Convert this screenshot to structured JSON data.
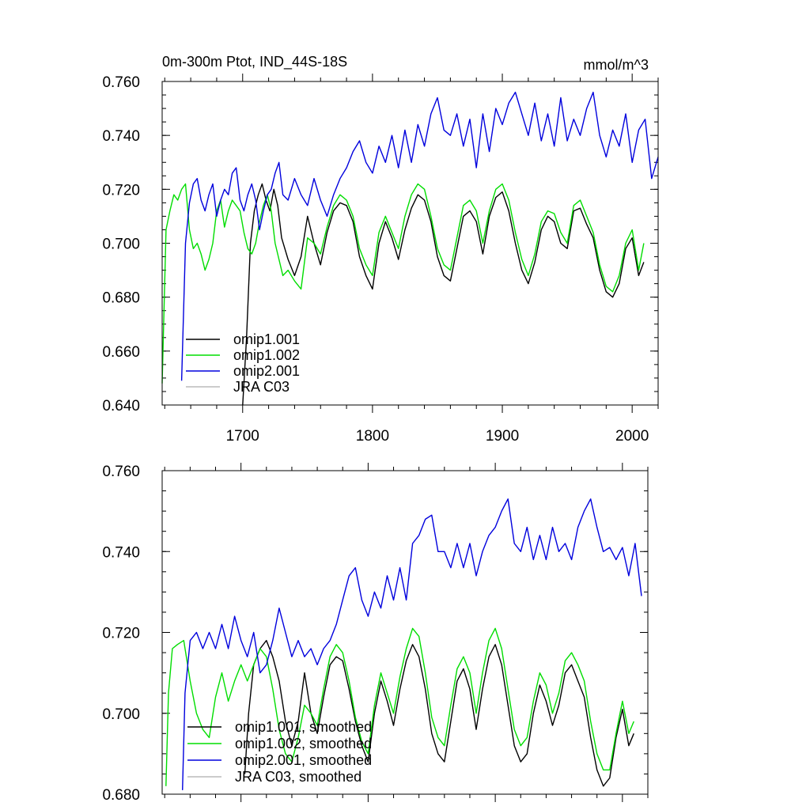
{
  "chart_data": [
    {
      "type": "line",
      "title": "0m-300m Ptot, IND_44S-18S",
      "units": "mmol/m^3",
      "xlim": [
        1638,
        2020
      ],
      "ylim": [
        0.64,
        0.76
      ],
      "yticks": [
        "0.760",
        "0.740",
        "0.720",
        "0.700",
        "0.680",
        "0.660",
        "0.640"
      ],
      "xticks": [
        "1700",
        "1800",
        "1900",
        "2000"
      ],
      "legend_position": "bottom-left",
      "legend": [
        {
          "label": "omip1.001",
          "color": "#000000"
        },
        {
          "label": "omip1.002",
          "color": "#00dd00"
        },
        {
          "label": "omip2.001",
          "color": "#0000dd"
        },
        {
          "label": "JRA C03",
          "color": "#bbbbbb"
        }
      ],
      "series": [
        {
          "name": "omip1.001",
          "color": "#000000",
          "x": [
            1700,
            1703,
            1706,
            1709,
            1712,
            1715,
            1718,
            1721,
            1724,
            1727,
            1730,
            1735,
            1740,
            1745,
            1750,
            1755,
            1760,
            1765,
            1770,
            1775,
            1780,
            1785,
            1790,
            1795,
            1800,
            1805,
            1810,
            1815,
            1820,
            1825,
            1830,
            1835,
            1840,
            1845,
            1850,
            1855,
            1860,
            1865,
            1870,
            1875,
            1880,
            1885,
            1890,
            1895,
            1900,
            1905,
            1910,
            1915,
            1920,
            1925,
            1930,
            1935,
            1940,
            1945,
            1950,
            1955,
            1960,
            1965,
            1970,
            1975,
            1980,
            1985,
            1990,
            1995,
            2000,
            2005,
            2009
          ],
          "y": [
            0.64,
            0.665,
            0.7,
            0.712,
            0.718,
            0.722,
            0.716,
            0.712,
            0.72,
            0.714,
            0.702,
            0.694,
            0.688,
            0.695,
            0.71,
            0.7,
            0.692,
            0.704,
            0.712,
            0.715,
            0.714,
            0.708,
            0.695,
            0.688,
            0.683,
            0.7,
            0.708,
            0.702,
            0.694,
            0.705,
            0.713,
            0.718,
            0.716,
            0.708,
            0.695,
            0.688,
            0.686,
            0.698,
            0.71,
            0.712,
            0.708,
            0.696,
            0.71,
            0.717,
            0.719,
            0.712,
            0.7,
            0.69,
            0.685,
            0.693,
            0.705,
            0.71,
            0.708,
            0.7,
            0.698,
            0.712,
            0.713,
            0.707,
            0.702,
            0.69,
            0.682,
            0.68,
            0.685,
            0.698,
            0.702,
            0.688,
            0.693
          ]
        },
        {
          "name": "omip1.002",
          "color": "#00dd00",
          "x": [
            1638,
            1641,
            1644,
            1647,
            1650,
            1653,
            1656,
            1659,
            1662,
            1665,
            1668,
            1671,
            1674,
            1677,
            1680,
            1683,
            1686,
            1689,
            1692,
            1695,
            1698,
            1701,
            1704,
            1707,
            1710,
            1713,
            1716,
            1719,
            1722,
            1725,
            1728,
            1731,
            1735,
            1740,
            1745,
            1750,
            1755,
            1760,
            1765,
            1770,
            1775,
            1780,
            1785,
            1790,
            1795,
            1800,
            1805,
            1810,
            1815,
            1820,
            1825,
            1830,
            1835,
            1840,
            1845,
            1850,
            1855,
            1860,
            1865,
            1870,
            1875,
            1880,
            1885,
            1890,
            1895,
            1900,
            1905,
            1910,
            1915,
            1920,
            1925,
            1930,
            1935,
            1940,
            1945,
            1950,
            1955,
            1960,
            1965,
            1970,
            1975,
            1980,
            1985,
            1990,
            1995,
            2000,
            2005,
            2009
          ],
          "y": [
            0.648,
            0.705,
            0.712,
            0.718,
            0.716,
            0.72,
            0.722,
            0.705,
            0.698,
            0.7,
            0.696,
            0.69,
            0.694,
            0.7,
            0.712,
            0.716,
            0.706,
            0.712,
            0.716,
            0.714,
            0.712,
            0.704,
            0.698,
            0.696,
            0.7,
            0.708,
            0.714,
            0.718,
            0.712,
            0.7,
            0.694,
            0.688,
            0.69,
            0.686,
            0.683,
            0.702,
            0.7,
            0.696,
            0.706,
            0.714,
            0.718,
            0.716,
            0.71,
            0.698,
            0.692,
            0.688,
            0.704,
            0.71,
            0.704,
            0.698,
            0.71,
            0.718,
            0.722,
            0.72,
            0.71,
            0.698,
            0.692,
            0.69,
            0.702,
            0.714,
            0.716,
            0.712,
            0.7,
            0.712,
            0.72,
            0.722,
            0.716,
            0.704,
            0.694,
            0.688,
            0.696,
            0.708,
            0.712,
            0.711,
            0.704,
            0.7,
            0.714,
            0.716,
            0.71,
            0.704,
            0.692,
            0.684,
            0.682,
            0.688,
            0.7,
            0.705,
            0.69,
            0.7
          ]
        },
        {
          "name": "omip2.001",
          "color": "#0000dd",
          "x": [
            1653,
            1656,
            1659,
            1662,
            1665,
            1668,
            1671,
            1674,
            1677,
            1680,
            1683,
            1686,
            1689,
            1692,
            1695,
            1698,
            1701,
            1704,
            1707,
            1710,
            1713,
            1716,
            1719,
            1722,
            1725,
            1728,
            1731,
            1735,
            1740,
            1745,
            1750,
            1755,
            1760,
            1765,
            1770,
            1775,
            1780,
            1785,
            1790,
            1795,
            1800,
            1805,
            1810,
            1815,
            1820,
            1825,
            1830,
            1835,
            1840,
            1845,
            1850,
            1855,
            1860,
            1865,
            1870,
            1875,
            1880,
            1885,
            1890,
            1895,
            1900,
            1905,
            1910,
            1915,
            1920,
            1925,
            1930,
            1935,
            1940,
            1945,
            1950,
            1955,
            1960,
            1965,
            1970,
            1975,
            1980,
            1985,
            1990,
            1995,
            2000,
            2005,
            2010,
            2015,
            2020
          ],
          "y": [
            0.649,
            0.7,
            0.715,
            0.722,
            0.724,
            0.716,
            0.712,
            0.718,
            0.722,
            0.71,
            0.716,
            0.72,
            0.718,
            0.726,
            0.728,
            0.716,
            0.712,
            0.718,
            0.722,
            0.716,
            0.705,
            0.712,
            0.718,
            0.72,
            0.726,
            0.73,
            0.718,
            0.716,
            0.724,
            0.718,
            0.714,
            0.724,
            0.716,
            0.71,
            0.718,
            0.724,
            0.728,
            0.734,
            0.738,
            0.73,
            0.726,
            0.736,
            0.73,
            0.74,
            0.728,
            0.742,
            0.73,
            0.744,
            0.736,
            0.748,
            0.754,
            0.742,
            0.74,
            0.748,
            0.736,
            0.746,
            0.728,
            0.748,
            0.734,
            0.75,
            0.744,
            0.752,
            0.756,
            0.748,
            0.74,
            0.752,
            0.738,
            0.748,
            0.736,
            0.754,
            0.738,
            0.746,
            0.74,
            0.75,
            0.756,
            0.74,
            0.732,
            0.742,
            0.736,
            0.748,
            0.73,
            0.742,
            0.746,
            0.724,
            0.732
          ]
        }
      ]
    },
    {
      "type": "line",
      "xlim": [
        1638,
        2020
      ],
      "ylim": [
        0.68,
        0.76
      ],
      "yticks": [
        "0.760",
        "0.740",
        "0.720",
        "0.700",
        "0.680"
      ],
      "legend_position": "bottom-left",
      "legend": [
        {
          "label": "omip1.001, smoothed",
          "color": "#000000"
        },
        {
          "label": "omip1.002, smoothed",
          "color": "#00dd00"
        },
        {
          "label": "omip2.001, smoothed",
          "color": "#0000dd"
        },
        {
          "label": "JRA C03, smoothed",
          "color": "#bbbbbb"
        }
      ],
      "series": [
        {
          "name": "omip1.001, smoothed",
          "color": "#000000",
          "x": [
            1703,
            1706,
            1710,
            1715,
            1720,
            1725,
            1730,
            1735,
            1740,
            1745,
            1750,
            1755,
            1760,
            1765,
            1770,
            1775,
            1780,
            1785,
            1790,
            1795,
            1800,
            1805,
            1810,
            1815,
            1820,
            1825,
            1830,
            1835,
            1840,
            1845,
            1850,
            1855,
            1860,
            1865,
            1870,
            1875,
            1880,
            1885,
            1890,
            1895,
            1900,
            1905,
            1910,
            1915,
            1920,
            1925,
            1930,
            1935,
            1940,
            1945,
            1950,
            1955,
            1960,
            1965,
            1970,
            1975,
            1980,
            1985,
            1990,
            1995,
            2000,
            2005,
            2009
          ],
          "y": [
            0.685,
            0.7,
            0.712,
            0.716,
            0.718,
            0.714,
            0.708,
            0.698,
            0.692,
            0.698,
            0.71,
            0.7,
            0.695,
            0.704,
            0.712,
            0.714,
            0.713,
            0.706,
            0.698,
            0.692,
            0.688,
            0.7,
            0.708,
            0.703,
            0.697,
            0.706,
            0.713,
            0.717,
            0.714,
            0.706,
            0.695,
            0.69,
            0.688,
            0.698,
            0.708,
            0.711,
            0.706,
            0.696,
            0.706,
            0.714,
            0.717,
            0.712,
            0.702,
            0.692,
            0.688,
            0.69,
            0.7,
            0.707,
            0.703,
            0.697,
            0.702,
            0.71,
            0.712,
            0.708,
            0.704,
            0.694,
            0.686,
            0.682,
            0.684,
            0.694,
            0.701,
            0.692,
            0.695
          ]
        },
        {
          "name": "omip1.002, smoothed",
          "color": "#00dd00",
          "x": [
            1641,
            1643,
            1646,
            1650,
            1655,
            1660,
            1665,
            1670,
            1675,
            1680,
            1685,
            1690,
            1695,
            1700,
            1705,
            1710,
            1715,
            1720,
            1725,
            1730,
            1735,
            1740,
            1745,
            1750,
            1755,
            1760,
            1765,
            1770,
            1775,
            1780,
            1785,
            1790,
            1795,
            1800,
            1805,
            1810,
            1815,
            1820,
            1825,
            1830,
            1835,
            1840,
            1845,
            1850,
            1855,
            1860,
            1865,
            1870,
            1875,
            1880,
            1885,
            1890,
            1895,
            1900,
            1905,
            1910,
            1915,
            1920,
            1925,
            1930,
            1935,
            1940,
            1945,
            1950,
            1955,
            1960,
            1965,
            1970,
            1975,
            1980,
            1985,
            1990,
            1995,
            2000,
            2005,
            2009
          ],
          "y": [
            0.682,
            0.705,
            0.716,
            0.717,
            0.718,
            0.708,
            0.7,
            0.696,
            0.694,
            0.704,
            0.71,
            0.703,
            0.708,
            0.712,
            0.708,
            0.712,
            0.716,
            0.714,
            0.706,
            0.696,
            0.69,
            0.688,
            0.694,
            0.702,
            0.7,
            0.697,
            0.706,
            0.714,
            0.717,
            0.715,
            0.708,
            0.699,
            0.693,
            0.69,
            0.702,
            0.71,
            0.705,
            0.7,
            0.709,
            0.716,
            0.721,
            0.719,
            0.71,
            0.699,
            0.694,
            0.692,
            0.702,
            0.711,
            0.714,
            0.71,
            0.7,
            0.71,
            0.718,
            0.721,
            0.716,
            0.706,
            0.696,
            0.692,
            0.694,
            0.703,
            0.71,
            0.707,
            0.7,
            0.705,
            0.713,
            0.715,
            0.712,
            0.708,
            0.698,
            0.69,
            0.686,
            0.686,
            0.695,
            0.703,
            0.695,
            0.698
          ]
        },
        {
          "name": "omip2.001, smoothed",
          "color": "#0000dd",
          "x": [
            1654,
            1656,
            1660,
            1665,
            1670,
            1675,
            1680,
            1685,
            1690,
            1695,
            1700,
            1705,
            1710,
            1715,
            1720,
            1725,
            1730,
            1735,
            1740,
            1745,
            1750,
            1755,
            1760,
            1765,
            1770,
            1775,
            1780,
            1785,
            1790,
            1795,
            1800,
            1805,
            1810,
            1815,
            1820,
            1825,
            1830,
            1835,
            1840,
            1845,
            1850,
            1855,
            1860,
            1865,
            1870,
            1875,
            1880,
            1885,
            1890,
            1895,
            1900,
            1905,
            1910,
            1915,
            1920,
            1925,
            1930,
            1935,
            1940,
            1945,
            1950,
            1955,
            1960,
            1965,
            1970,
            1975,
            1980,
            1985,
            1990,
            1995,
            2000,
            2005,
            2010,
            2015
          ],
          "y": [
            0.681,
            0.705,
            0.718,
            0.72,
            0.716,
            0.72,
            0.716,
            0.722,
            0.716,
            0.724,
            0.718,
            0.714,
            0.72,
            0.71,
            0.712,
            0.718,
            0.726,
            0.72,
            0.714,
            0.718,
            0.714,
            0.716,
            0.712,
            0.716,
            0.718,
            0.722,
            0.728,
            0.734,
            0.736,
            0.728,
            0.724,
            0.73,
            0.726,
            0.734,
            0.728,
            0.736,
            0.728,
            0.742,
            0.744,
            0.748,
            0.749,
            0.74,
            0.74,
            0.736,
            0.742,
            0.736,
            0.742,
            0.734,
            0.74,
            0.744,
            0.746,
            0.75,
            0.753,
            0.742,
            0.74,
            0.746,
            0.738,
            0.744,
            0.738,
            0.746,
            0.74,
            0.742,
            0.738,
            0.746,
            0.75,
            0.753,
            0.746,
            0.74,
            0.741,
            0.738,
            0.741,
            0.734,
            0.742,
            0.729
          ]
        }
      ]
    }
  ]
}
